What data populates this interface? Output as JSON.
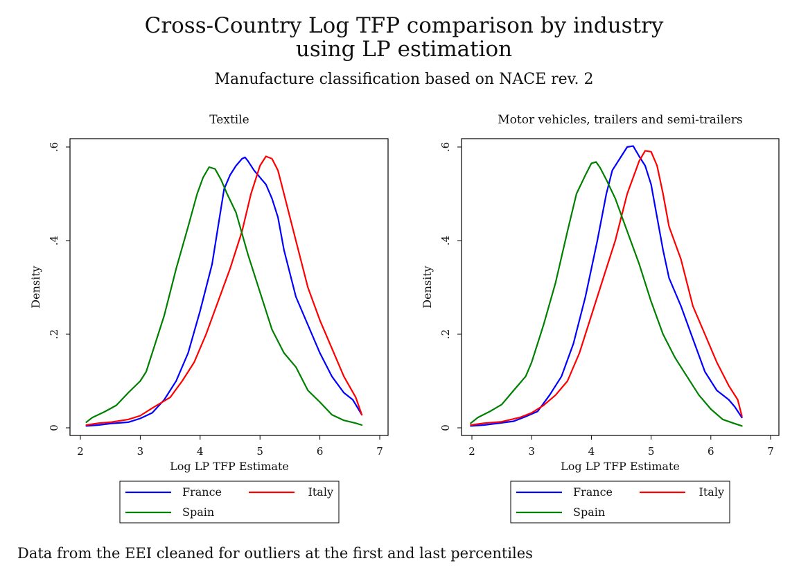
{
  "title_line1": "Cross-Country Log TFP comparison by industry",
  "title_line2": "using LP estimation",
  "subtitle": "Manufacture classification based on NACE rev. 2",
  "note": "Data from the EEI cleaned for outliers at the first and last percentiles",
  "colors": {
    "France": "#0000ff",
    "Italy": "#ff0000",
    "Spain": "#008000"
  },
  "chart_data": [
    {
      "type": "line",
      "title": "Textile",
      "xlabel": "Log LP TFP Estimate",
      "ylabel": "Density",
      "xlim": [
        2,
        7
      ],
      "ylim": [
        0,
        0.6
      ],
      "xticks": [
        "2",
        "3",
        "4",
        "5",
        "6",
        "7"
      ],
      "yticks": [
        "0",
        ".2",
        ".4",
        ".6"
      ],
      "grid": false,
      "legend": "bottom",
      "series": [
        {
          "name": "France",
          "points": [
            [
              2.1,
              0.004
            ],
            [
              2.3,
              0.006
            ],
            [
              2.5,
              0.009
            ],
            [
              2.8,
              0.012
            ],
            [
              3.0,
              0.02
            ],
            [
              3.2,
              0.032
            ],
            [
              3.4,
              0.06
            ],
            [
              3.6,
              0.1
            ],
            [
              3.8,
              0.16
            ],
            [
              4.0,
              0.25
            ],
            [
              4.2,
              0.35
            ],
            [
              4.3,
              0.43
            ],
            [
              4.4,
              0.51
            ],
            [
              4.5,
              0.54
            ],
            [
              4.6,
              0.56
            ],
            [
              4.7,
              0.575
            ],
            [
              4.75,
              0.578
            ],
            [
              4.8,
              0.57
            ],
            [
              4.9,
              0.55
            ],
            [
              5.0,
              0.535
            ],
            [
              5.1,
              0.52
            ],
            [
              5.2,
              0.49
            ],
            [
              5.3,
              0.45
            ],
            [
              5.4,
              0.38
            ],
            [
              5.6,
              0.28
            ],
            [
              5.8,
              0.22
            ],
            [
              6.0,
              0.16
            ],
            [
              6.2,
              0.11
            ],
            [
              6.4,
              0.075
            ],
            [
              6.55,
              0.06
            ],
            [
              6.7,
              0.028
            ]
          ]
        },
        {
          "name": "Italy",
          "points": [
            [
              2.1,
              0.006
            ],
            [
              2.3,
              0.01
            ],
            [
              2.5,
              0.012
            ],
            [
              2.8,
              0.018
            ],
            [
              3.0,
              0.026
            ],
            [
              3.2,
              0.042
            ],
            [
              3.5,
              0.065
            ],
            [
              3.7,
              0.1
            ],
            [
              3.9,
              0.14
            ],
            [
              4.1,
              0.2
            ],
            [
              4.3,
              0.27
            ],
            [
              4.5,
              0.34
            ],
            [
              4.7,
              0.42
            ],
            [
              4.85,
              0.5
            ],
            [
              5.0,
              0.56
            ],
            [
              5.1,
              0.58
            ],
            [
              5.2,
              0.575
            ],
            [
              5.3,
              0.55
            ],
            [
              5.4,
              0.5
            ],
            [
              5.5,
              0.45
            ],
            [
              5.6,
              0.4
            ],
            [
              5.8,
              0.3
            ],
            [
              6.0,
              0.23
            ],
            [
              6.2,
              0.17
            ],
            [
              6.4,
              0.11
            ],
            [
              6.6,
              0.065
            ],
            [
              6.7,
              0.028
            ]
          ]
        },
        {
          "name": "Spain",
          "points": [
            [
              2.1,
              0.012
            ],
            [
              2.2,
              0.022
            ],
            [
              2.4,
              0.034
            ],
            [
              2.6,
              0.048
            ],
            [
              2.8,
              0.075
            ],
            [
              3.0,
              0.1
            ],
            [
              3.1,
              0.12
            ],
            [
              3.2,
              0.16
            ],
            [
              3.4,
              0.24
            ],
            [
              3.6,
              0.34
            ],
            [
              3.8,
              0.43
            ],
            [
              3.95,
              0.5
            ],
            [
              4.05,
              0.535
            ],
            [
              4.15,
              0.557
            ],
            [
              4.25,
              0.553
            ],
            [
              4.35,
              0.53
            ],
            [
              4.45,
              0.5
            ],
            [
              4.6,
              0.46
            ],
            [
              4.8,
              0.37
            ],
            [
              5.0,
              0.29
            ],
            [
              5.2,
              0.21
            ],
            [
              5.4,
              0.16
            ],
            [
              5.6,
              0.13
            ],
            [
              5.8,
              0.08
            ],
            [
              6.0,
              0.055
            ],
            [
              6.2,
              0.028
            ],
            [
              6.4,
              0.016
            ],
            [
              6.6,
              0.01
            ],
            [
              6.7,
              0.006
            ]
          ]
        }
      ]
    },
    {
      "type": "line",
      "title": "Motor vehicles, trailers and semi-trailers",
      "xlabel": "Log LP TFP Estimate",
      "ylabel": "Density",
      "xlim": [
        2,
        7
      ],
      "ylim": [
        0,
        0.6
      ],
      "xticks": [
        "2",
        "3",
        "4",
        "5",
        "6",
        "7"
      ],
      "yticks": [
        "0",
        ".2",
        ".4",
        ".6"
      ],
      "grid": false,
      "legend": "bottom",
      "series": [
        {
          "name": "France",
          "points": [
            [
              1.98,
              0.004
            ],
            [
              2.2,
              0.006
            ],
            [
              2.4,
              0.009
            ],
            [
              2.7,
              0.014
            ],
            [
              2.9,
              0.024
            ],
            [
              3.1,
              0.035
            ],
            [
              3.3,
              0.07
            ],
            [
              3.5,
              0.11
            ],
            [
              3.7,
              0.18
            ],
            [
              3.9,
              0.28
            ],
            [
              4.1,
              0.4
            ],
            [
              4.25,
              0.5
            ],
            [
              4.35,
              0.55
            ],
            [
              4.5,
              0.58
            ],
            [
              4.6,
              0.6
            ],
            [
              4.7,
              0.602
            ],
            [
              4.8,
              0.58
            ],
            [
              4.9,
              0.56
            ],
            [
              5.0,
              0.52
            ],
            [
              5.1,
              0.45
            ],
            [
              5.2,
              0.38
            ],
            [
              5.3,
              0.32
            ],
            [
              5.5,
              0.26
            ],
            [
              5.7,
              0.19
            ],
            [
              5.9,
              0.12
            ],
            [
              6.1,
              0.08
            ],
            [
              6.3,
              0.06
            ],
            [
              6.4,
              0.045
            ],
            [
              6.52,
              0.022
            ]
          ]
        },
        {
          "name": "Italy",
          "points": [
            [
              1.98,
              0.006
            ],
            [
              2.2,
              0.01
            ],
            [
              2.5,
              0.013
            ],
            [
              2.8,
              0.022
            ],
            [
              3.0,
              0.032
            ],
            [
              3.2,
              0.048
            ],
            [
              3.4,
              0.07
            ],
            [
              3.6,
              0.1
            ],
            [
              3.8,
              0.16
            ],
            [
              4.0,
              0.24
            ],
            [
              4.2,
              0.32
            ],
            [
              4.4,
              0.4
            ],
            [
              4.6,
              0.5
            ],
            [
              4.8,
              0.57
            ],
            [
              4.9,
              0.592
            ],
            [
              5.0,
              0.59
            ],
            [
              5.1,
              0.56
            ],
            [
              5.2,
              0.5
            ],
            [
              5.3,
              0.43
            ],
            [
              5.5,
              0.36
            ],
            [
              5.7,
              0.26
            ],
            [
              5.9,
              0.2
            ],
            [
              6.1,
              0.14
            ],
            [
              6.3,
              0.09
            ],
            [
              6.45,
              0.06
            ],
            [
              6.52,
              0.025
            ]
          ]
        },
        {
          "name": "Spain",
          "points": [
            [
              1.98,
              0.01
            ],
            [
              2.1,
              0.022
            ],
            [
              2.3,
              0.035
            ],
            [
              2.5,
              0.05
            ],
            [
              2.7,
              0.08
            ],
            [
              2.9,
              0.11
            ],
            [
              3.0,
              0.14
            ],
            [
              3.2,
              0.22
            ],
            [
              3.4,
              0.31
            ],
            [
              3.6,
              0.42
            ],
            [
              3.75,
              0.5
            ],
            [
              3.9,
              0.54
            ],
            [
              4.0,
              0.565
            ],
            [
              4.08,
              0.568
            ],
            [
              4.15,
              0.555
            ],
            [
              4.25,
              0.53
            ],
            [
              4.4,
              0.49
            ],
            [
              4.6,
              0.42
            ],
            [
              4.8,
              0.35
            ],
            [
              5.0,
              0.27
            ],
            [
              5.2,
              0.2
            ],
            [
              5.4,
              0.15
            ],
            [
              5.6,
              0.11
            ],
            [
              5.8,
              0.07
            ],
            [
              6.0,
              0.04
            ],
            [
              6.2,
              0.018
            ],
            [
              6.4,
              0.009
            ],
            [
              6.52,
              0.004
            ]
          ]
        }
      ]
    }
  ]
}
